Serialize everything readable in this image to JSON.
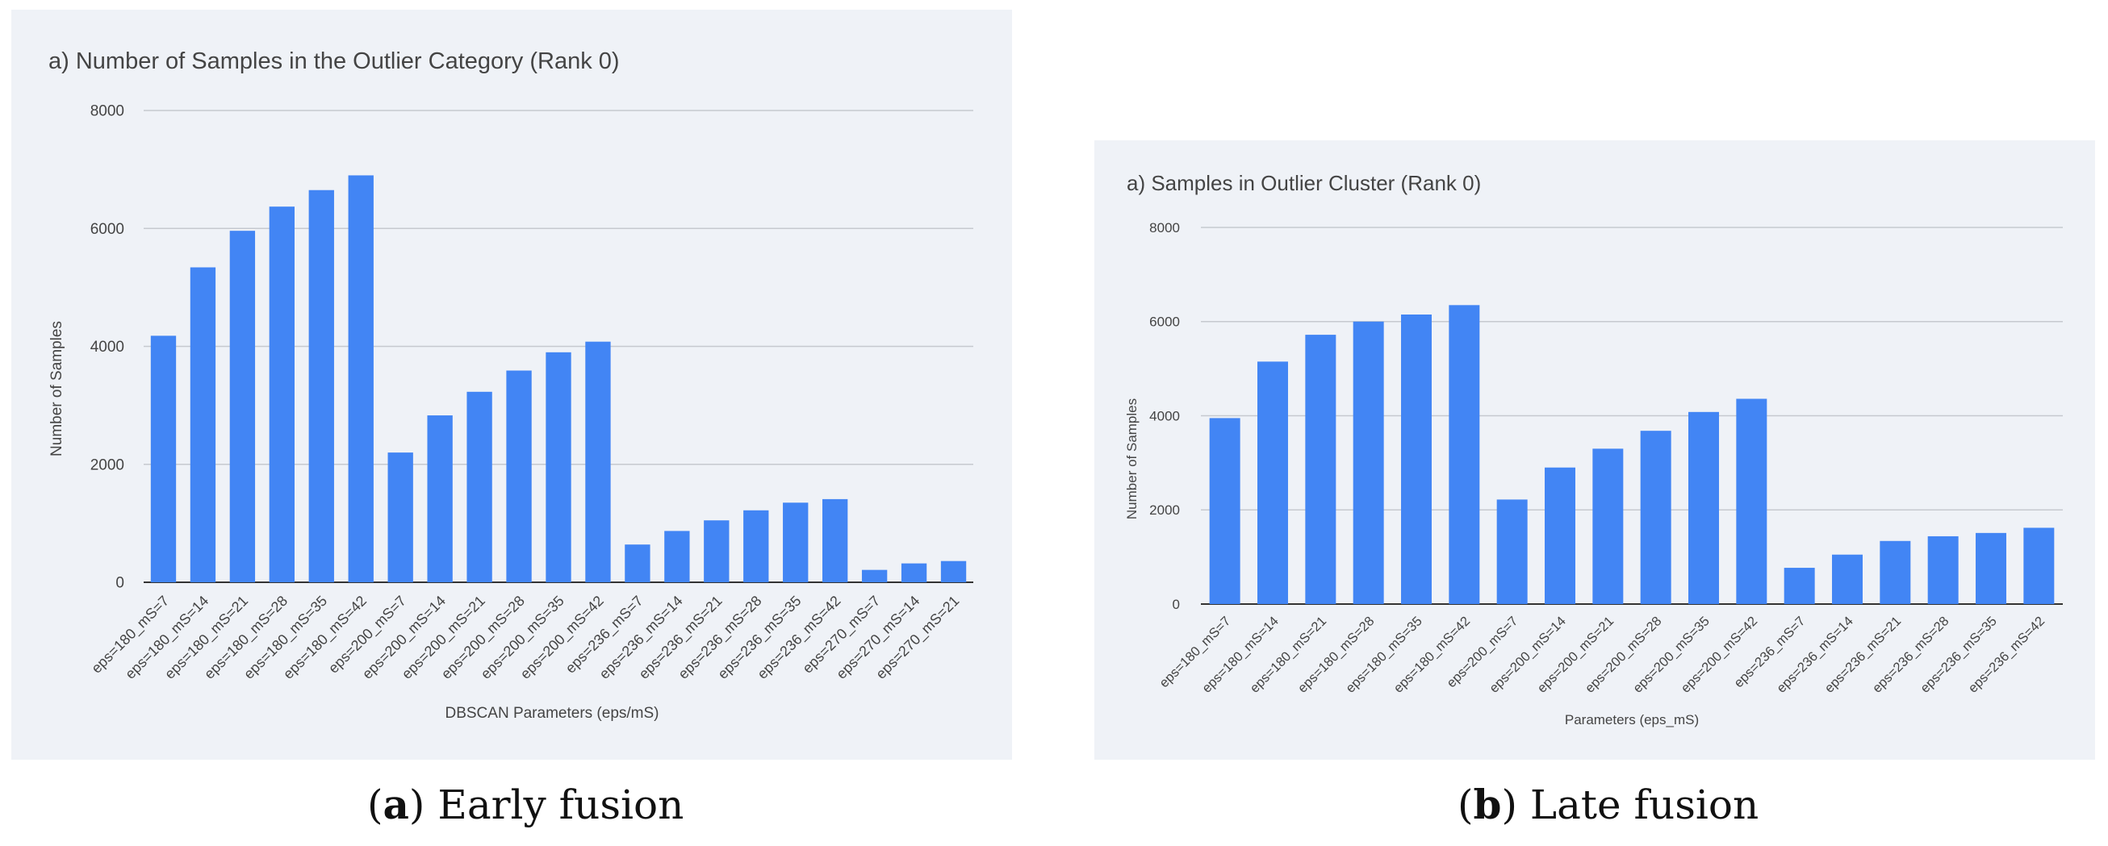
{
  "chart_data": [
    {
      "type": "bar",
      "title": "a) Number of Samples in the Outlier Category (Rank 0)",
      "xlabel": "DBSCAN Parameters (eps/mS)",
      "ylabel": "Number of Samples",
      "ylim": [
        0,
        8000
      ],
      "yticks": [
        "0",
        "2000",
        "4000",
        "6000",
        "8000"
      ],
      "grid": true,
      "color": "#4285f4",
      "categories": [
        "eps=180_mS=7",
        "eps=180_mS=14",
        "eps=180_mS=21",
        "eps=180_mS=28",
        "eps=180_mS=35",
        "eps=180_mS=42",
        "eps=200_mS=7",
        "eps=200_mS=14",
        "eps=200_mS=21",
        "eps=200_mS=28",
        "eps=200_mS=35",
        "eps=200_mS=42",
        "eps=236_mS=7",
        "eps=236_mS=14",
        "eps=236_mS=21",
        "eps=236_mS=28",
        "eps=236_mS=35",
        "eps=236_mS=42",
        "eps=270_mS=7",
        "eps=270_mS=14",
        "eps=270_mS=21"
      ],
      "values": [
        4180,
        5340,
        5960,
        6370,
        6650,
        6900,
        2200,
        2830,
        3230,
        3590,
        3900,
        4080,
        640,
        870,
        1050,
        1220,
        1350,
        1410,
        210,
        320,
        360
      ]
    },
    {
      "type": "bar",
      "title": "a) Samples in Outlier Cluster (Rank 0)",
      "xlabel": "Parameters (eps_mS)",
      "ylabel": "Number of Samples",
      "ylim": [
        0,
        8000
      ],
      "yticks": [
        "0",
        "2000",
        "4000",
        "6000",
        "8000"
      ],
      "grid": true,
      "color": "#4285f4",
      "categories": [
        "eps=180_mS=7",
        "eps=180_mS=14",
        "eps=180_mS=21",
        "eps=180_mS=28",
        "eps=180_mS=35",
        "eps=180_mS=42",
        "eps=200_mS=7",
        "eps=200_mS=14",
        "eps=200_mS=21",
        "eps=200_mS=28",
        "eps=200_mS=35",
        "eps=200_mS=42",
        "eps=236_mS=7",
        "eps=236_mS=14",
        "eps=236_mS=21",
        "eps=236_mS=28",
        "eps=236_mS=35",
        "eps=236_mS=42"
      ],
      "values": [
        3950,
        5150,
        5720,
        6000,
        6150,
        6350,
        2220,
        2900,
        3300,
        3680,
        4080,
        4360,
        770,
        1050,
        1340,
        1440,
        1510,
        1620
      ]
    }
  ],
  "captions": {
    "a_letter": "a",
    "a_text": "Early fusion",
    "b_letter": "b",
    "b_text": "Late fusion"
  }
}
